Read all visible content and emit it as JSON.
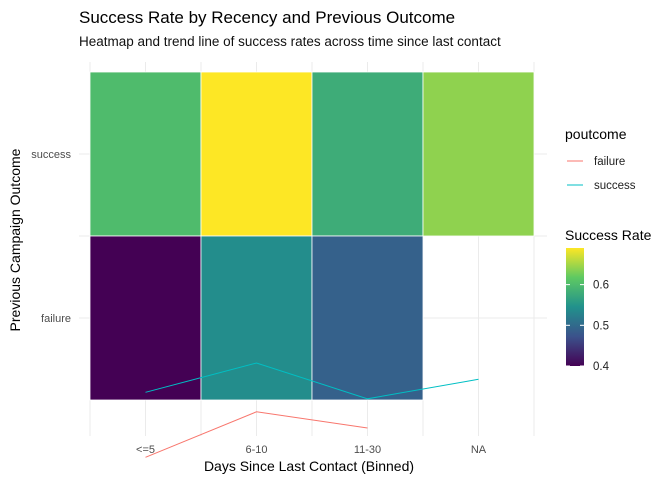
{
  "chart_data": {
    "type": "heatmap",
    "title": "Success Rate by Recency and Previous Outcome",
    "subtitle": "Heatmap and trend line of success rates across time since last contact",
    "xlabel": "Days Since Last Contact (Binned)",
    "ylabel": "Previous Campaign Outcome",
    "x_categories": [
      "<=5",
      "6-10",
      "11-30",
      "NA"
    ],
    "y_categories": [
      "failure",
      "success"
    ],
    "cells": [
      {
        "x": "<=5",
        "y": "success",
        "value": 0.6
      },
      {
        "x": "6-10",
        "y": "success",
        "value": 0.69
      },
      {
        "x": "11-30",
        "y": "success",
        "value": 0.58
      },
      {
        "x": "NA",
        "y": "success",
        "value": 0.64
      },
      {
        "x": "<=5",
        "y": "failure",
        "value": 0.4
      },
      {
        "x": "6-10",
        "y": "failure",
        "value": 0.54
      },
      {
        "x": "11-30",
        "y": "failure",
        "value": 0.49
      }
    ],
    "trend_series": [
      {
        "name": "failure",
        "color": "#F8766D",
        "values": [
          0.4,
          0.54,
          0.49,
          null
        ]
      },
      {
        "name": "success",
        "color": "#00BFC4",
        "values": [
          0.6,
          0.69,
          0.58,
          0.64
        ]
      }
    ],
    "fill_legend": {
      "title": "Success Rate",
      "ticks": [
        0.4,
        0.5,
        0.6
      ],
      "tick_labels": [
        "0.4",
        "0.5",
        "0.6"
      ],
      "range": [
        0.4,
        0.69
      ]
    },
    "color_legend": {
      "title": "poutcome",
      "labels": [
        "failure",
        "success"
      ]
    }
  }
}
